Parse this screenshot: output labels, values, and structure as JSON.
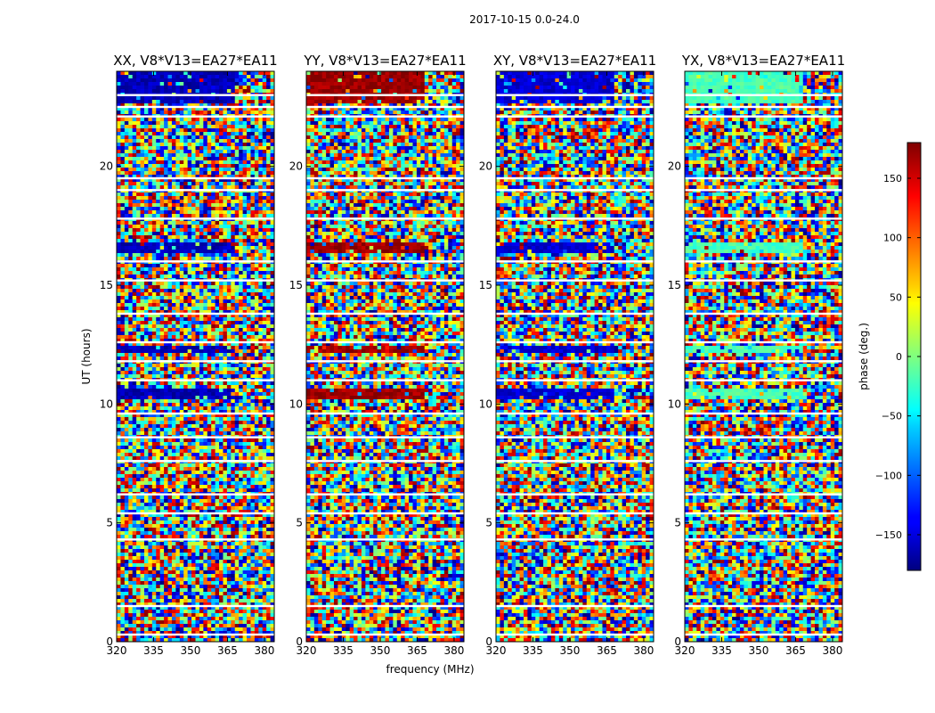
{
  "figure_title": "2017-10-15 0.0-24.0",
  "colorbar_label": "phase (deg.)",
  "chart_data": {
    "type": "heatmap",
    "title": "2017-10-15 0.0-24.0",
    "xlabel": "frequency (MHz)",
    "ylabel": "UT (hours)",
    "xlim": [
      320,
      384
    ],
    "ylim": [
      0,
      24
    ],
    "xticks": [
      320,
      335,
      350,
      365,
      380
    ],
    "yticks": [
      0,
      5,
      10,
      15,
      20
    ],
    "colorbar": {
      "label": "phase (deg.)",
      "range": [
        -180,
        180
      ],
      "ticks": [
        150,
        100,
        50,
        0,
        -50,
        -100,
        -150
      ],
      "tick_labels": [
        "150",
        "100",
        "50",
        "0",
        "−50",
        "−100",
        "−150"
      ],
      "colormap": "jet"
    },
    "panels": [
      {
        "title": "XX, V8*V13=EA27*EA11",
        "dominant_phase_band": -160
      },
      {
        "title": "YY, V8*V13=EA27*EA11",
        "dominant_phase_band": 170
      },
      {
        "title": "XY, V8*V13=EA27*EA11",
        "dominant_phase_band": -150
      },
      {
        "title": "YX, V8*V13=EA27*EA11",
        "dominant_phase_band": -20
      }
    ],
    "coherent_bands_hours": [
      {
        "from": 22.6,
        "to": 24.0
      },
      {
        "from": 16.4,
        "to": 16.8
      },
      {
        "from": 12.1,
        "to": 12.5
      },
      {
        "from": 10.2,
        "to": 10.6
      }
    ],
    "gaps_hours": [
      23.0,
      22.5,
      22.1,
      19.5,
      19.0,
      17.8,
      16.0,
      15.2,
      13.8,
      12.6,
      11.8,
      11.0,
      9.6,
      8.6,
      7.6,
      6.2,
      5.4,
      4.3,
      1.5,
      0.3
    ]
  }
}
